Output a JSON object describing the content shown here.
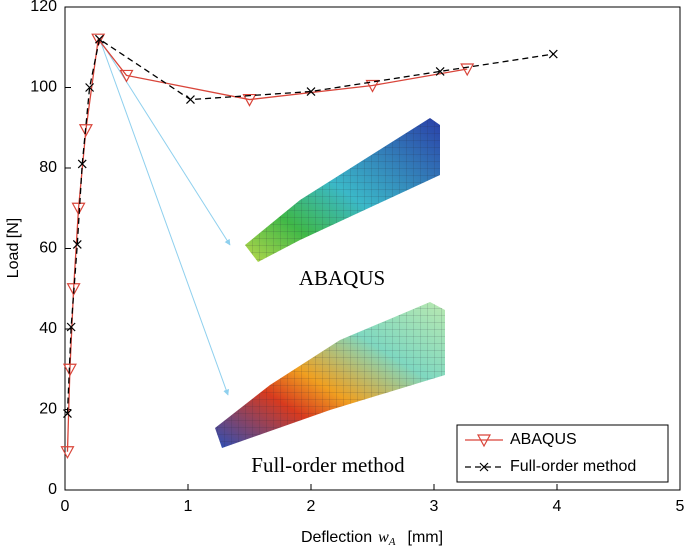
{
  "chart_data": {
    "type": "line",
    "xlabel": "Deflection",
    "xlabel_symbol": "w",
    "xlabel_subscript": "A",
    "xlabel_unit": "[mm]",
    "ylabel": "Load [N]",
    "annotations": [
      "ABAQUS",
      "Full-order method"
    ],
    "xlim": [
      0,
      5
    ],
    "xticks": [
      0,
      1,
      2,
      3,
      4,
      5
    ],
    "ylim": [
      0,
      120
    ],
    "yticks": [
      0,
      20,
      40,
      60,
      80,
      100,
      120
    ],
    "legend": "lower right",
    "series": [
      {
        "name": "ABAQUS",
        "color": "#d9453a",
        "marker": "triangle-down",
        "dashed": false,
        "x": [
          0.02,
          0.04,
          0.07,
          0.11,
          0.17,
          0.27,
          0.5,
          1.5,
          2.5,
          3.27
        ],
        "values": [
          9.5,
          30,
          50,
          70,
          89.5,
          112,
          103,
          97,
          100.5,
          104.6
        ]
      },
      {
        "name": "Full-order method",
        "color": "#000000",
        "marker": "x",
        "dashed": true,
        "x": [
          0.02,
          0.05,
          0.1,
          0.14,
          0.2,
          0.28,
          1.02,
          2.0,
          3.05,
          3.97
        ],
        "values": [
          19,
          40.5,
          61,
          81,
          100,
          112,
          97,
          99,
          104,
          108.3
        ]
      }
    ]
  }
}
